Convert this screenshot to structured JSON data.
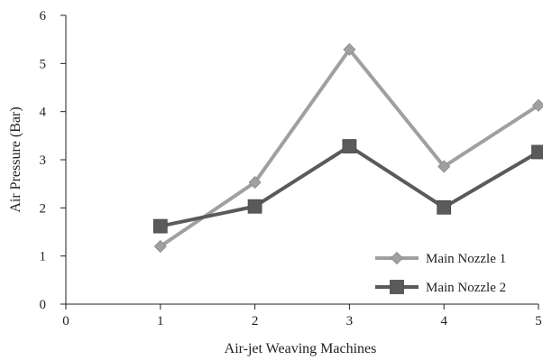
{
  "chart_data": {
    "type": "line",
    "title": "",
    "xlabel": "Air-jet Weaving Machines",
    "ylabel": "Air Pressure (Bar)",
    "xlim": [
      0,
      5
    ],
    "ylim": [
      0,
      6
    ],
    "x_ticks": [
      0,
      1,
      2,
      3,
      4,
      5
    ],
    "y_ticks": [
      0,
      1,
      2,
      3,
      4,
      5,
      6
    ],
    "grid": false,
    "legend_position": "bottom-right",
    "series": [
      {
        "name": "Main Nozzle 1",
        "x": [
          1,
          2,
          3,
          4,
          5
        ],
        "values": [
          1.2,
          2.53,
          5.29,
          2.86,
          4.13
        ],
        "color": "#a0a0a0",
        "marker": "diamond"
      },
      {
        "name": "Main  Nozzle 2",
        "x": [
          1,
          2,
          3,
          4,
          5
        ],
        "values": [
          1.62,
          2.03,
          3.28,
          2.01,
          3.16
        ],
        "color": "#5a5a5a",
        "marker": "square"
      }
    ]
  }
}
